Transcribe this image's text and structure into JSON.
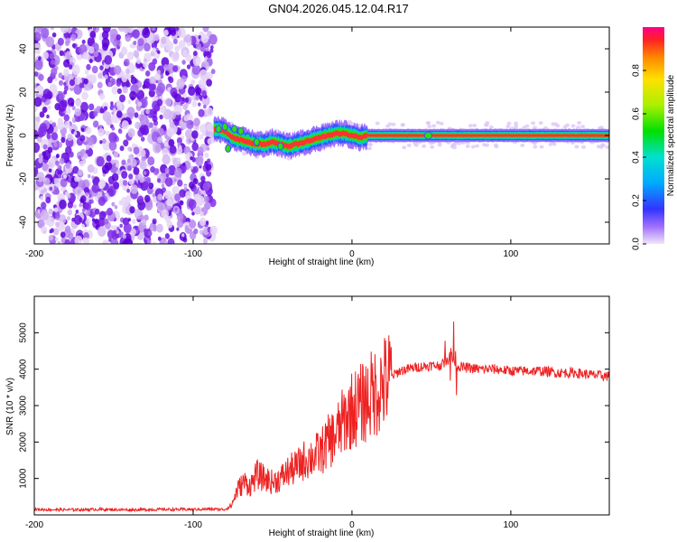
{
  "title": "GN04.2026.045.12.04.R17",
  "chart_data": [
    {
      "type": "heatmap",
      "xlabel": "Height of straight line (km)",
      "ylabel": "Frequency (Hz)",
      "xlim": [
        -200,
        162
      ],
      "ylim": [
        -50,
        50
      ],
      "x_ticks": [
        -200,
        -100,
        0,
        100
      ],
      "y_ticks": [
        -40,
        -20,
        0,
        20,
        40
      ],
      "noise_region_x": [
        -200,
        -87
      ],
      "signal_start_x": -87,
      "ridge": {
        "x": [
          -85,
          -80,
          -75,
          -70,
          -65,
          -60,
          -55,
          -50,
          -45,
          -40,
          -35,
          -30,
          -25,
          -20,
          -15,
          -10,
          -5,
          0,
          5,
          10,
          20,
          40,
          60,
          80,
          100,
          120,
          140,
          162
        ],
        "y": [
          3,
          2,
          -1,
          -2,
          -3,
          -4,
          -4,
          -3,
          -4,
          -5,
          -4,
          -3,
          -2,
          -1,
          0,
          1,
          1,
          0,
          -1,
          0,
          0,
          0,
          0,
          0,
          0,
          0,
          0,
          0
        ]
      },
      "colorbar": {
        "label": "Normalized spectral amplitude",
        "range": [
          0.0,
          1.0
        ],
        "ticks": [
          0.0,
          0.2,
          0.4,
          0.6,
          0.8
        ],
        "tick_labels": [
          "0.0",
          "0.2",
          "0.4",
          "0.6",
          "0.8"
        ]
      }
    },
    {
      "type": "line",
      "xlabel": "Height of straight line (km)",
      "ylabel": "SNR (10 * v/v)",
      "xlim": [
        -200,
        162
      ],
      "ylim": [
        0,
        6000
      ],
      "x_ticks": [
        -200,
        -100,
        0,
        100
      ],
      "y_ticks": [
        1000,
        2000,
        3000,
        4000,
        5000
      ],
      "series": [
        {
          "name": "SNR",
          "color": "#ee2222",
          "x": [
            -200,
            -180,
            -160,
            -140,
            -120,
            -100,
            -90,
            -80,
            -76,
            -72,
            -68,
            -64,
            -60,
            -55,
            -50,
            -45,
            -40,
            -35,
            -30,
            -25,
            -20,
            -15,
            -10,
            -5,
            0,
            5,
            10,
            15,
            20,
            25,
            30,
            35,
            40,
            50,
            55,
            60,
            62,
            65,
            70,
            80,
            90,
            100,
            110,
            120,
            130,
            140,
            150,
            162
          ],
          "values": [
            150,
            140,
            150,
            140,
            150,
            150,
            160,
            150,
            250,
            700,
            900,
            800,
            1100,
            1000,
            900,
            1000,
            1200,
            1300,
            1500,
            1600,
            1700,
            2000,
            2200,
            2600,
            2900,
            3000,
            3200,
            3400,
            3600,
            3800,
            3950,
            4000,
            4050,
            4100,
            4100,
            4200,
            4500,
            4100,
            4050,
            4000,
            4000,
            3950,
            3950,
            3950,
            3900,
            3900,
            3850,
            3800
          ]
        }
      ]
    }
  ],
  "colors": {
    "noise": "#8a2be2",
    "ridge": "#ff2a2a",
    "line": "#ee2222"
  }
}
